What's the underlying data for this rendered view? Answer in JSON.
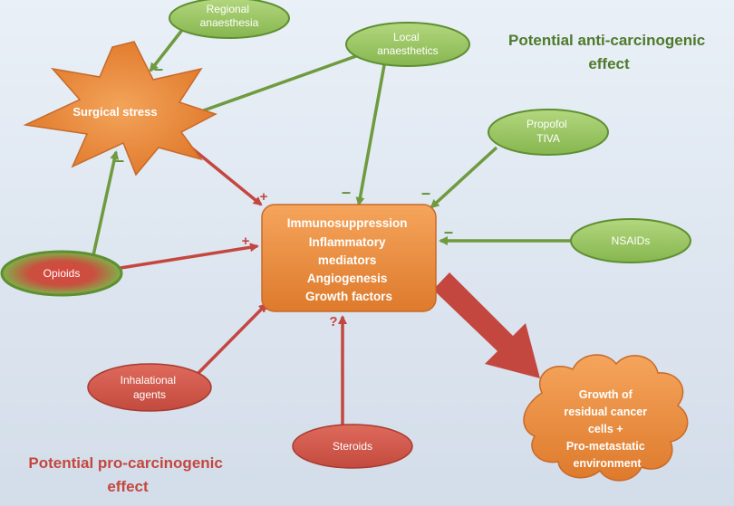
{
  "titles": {
    "anti": [
      "Potential anti-carcinogenic",
      "effect"
    ],
    "pro": [
      "Potential pro-carcinogenic",
      "effect"
    ]
  },
  "nodes": {
    "regional_anaesthesia": [
      "Regional",
      "anaesthesia"
    ],
    "local_anaesthetics": [
      "Local",
      "anaesthetics"
    ],
    "propofol_tiva": [
      "Propofol",
      "TIVA"
    ],
    "nsaids": [
      "NSAIDs"
    ],
    "surgical_stress": [
      "Surgical stress"
    ],
    "opioids": [
      "Opioids"
    ],
    "inhalational_agents": [
      "Inhalational",
      "agents"
    ],
    "steroids": [
      "Steroids"
    ],
    "central": [
      "Immunosuppression",
      "Inflammatory",
      "mediators",
      "Angiogenesis",
      "Growth factors"
    ],
    "outcome": [
      "Growth of",
      "residual cancer",
      "cells +",
      "Pro-metastatic",
      "environment"
    ]
  },
  "signs": {
    "minus": "–",
    "plus": "+",
    "question": "?"
  },
  "colors": {
    "green_fill": "#96c45e",
    "green_edge": "#5e8f32",
    "red_fill": "#d0574a",
    "red_edge": "#a83a30",
    "orange_fill": "#ec8a3a",
    "orange_edge": "#c8692a",
    "arrow_green": "#6f9a3e",
    "arrow_red": "#c4473f"
  }
}
